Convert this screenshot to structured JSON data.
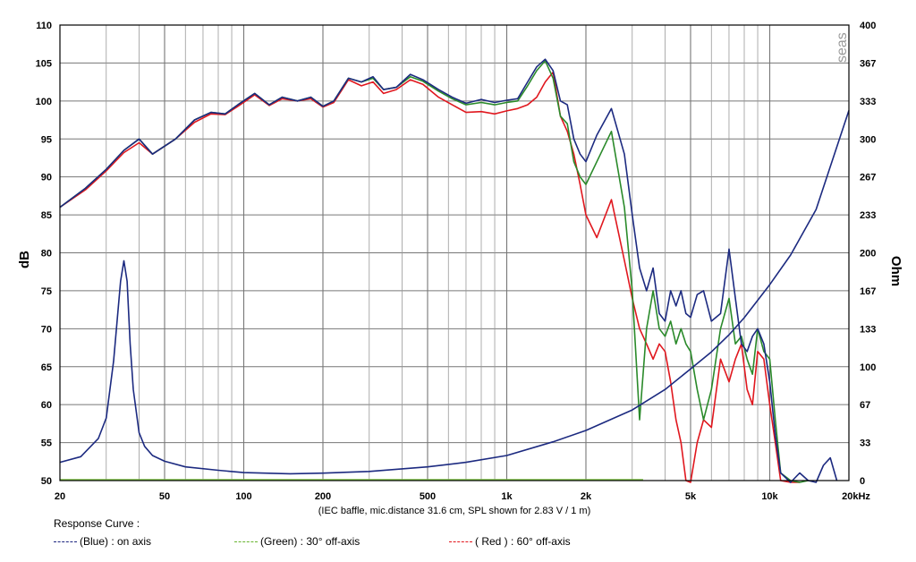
{
  "chart_data": {
    "type": "line",
    "xlabel": "",
    "ylabel": "dB",
    "y2label": "Ohm",
    "note": "(IEC baffle, mic.distance 31.6 cm, SPL shown for 2.83 V / 1 m)",
    "x_scale": "log",
    "xlim": [
      20,
      20000
    ],
    "ylim": [
      50,
      110
    ],
    "y2lim": [
      0,
      400
    ],
    "grid": true,
    "x_tick_labels": [
      "20",
      "50",
      "100",
      "200",
      "500",
      "1k",
      "2k",
      "5k",
      "10k",
      "20kHz"
    ],
    "x_tick_values": [
      20,
      50,
      100,
      200,
      500,
      1000,
      2000,
      5000,
      10000,
      20000
    ],
    "y_ticks": [
      50,
      55,
      60,
      65,
      70,
      75,
      80,
      85,
      90,
      95,
      100,
      105,
      110
    ],
    "y2_tick_labels": [
      "0",
      "33",
      "67",
      "100",
      "133",
      "167",
      "200",
      "233",
      "267",
      "300",
      "333",
      "367",
      "400"
    ],
    "watermark": "seas",
    "legend": {
      "heading": "Response Curve :",
      "items": [
        {
          "label": "(Blue)  : on axis",
          "color": "#1a237e"
        },
        {
          "label": "(Green) : 30° off-axis",
          "color": "#66b32e"
        },
        {
          "label": "( Red ) : 60° off-axis",
          "color": "#e3141b"
        }
      ]
    },
    "series": [
      {
        "name": "(Blue)  : on axis",
        "color": "#1c2a80",
        "x": [
          20,
          25,
          30,
          35,
          40,
          45,
          55,
          65,
          75,
          85,
          95,
          110,
          125,
          140,
          160,
          180,
          200,
          220,
          250,
          280,
          310,
          340,
          380,
          430,
          480,
          550,
          620,
          700,
          800,
          900,
          1000,
          1100,
          1200,
          1300,
          1400,
          1500,
          1600,
          1700,
          1800,
          1900,
          2000,
          2200,
          2500,
          2800,
          3000,
          3200,
          3400,
          3600,
          3800,
          4000,
          4200,
          4400,
          4600,
          4800,
          5000,
          5300,
          5600,
          6000,
          6500,
          7000,
          7400,
          7800,
          8200,
          8600,
          9000,
          9500,
          10000,
          10500,
          11000,
          12000,
          13000,
          14000,
          15000,
          16000,
          17000,
          18000
        ],
        "y": [
          86,
          88.5,
          91,
          93.5,
          95,
          93,
          95,
          97.5,
          98.5,
          98.3,
          99.5,
          101,
          99.5,
          100.5,
          100,
          100.5,
          99.3,
          100,
          103,
          102.5,
          103.2,
          101.5,
          101.8,
          103.5,
          102.8,
          101.5,
          100.5,
          99.7,
          100.2,
          99.8,
          100.1,
          100.3,
          102.5,
          104.5,
          105.5,
          104,
          100,
          99.5,
          95,
          93,
          92,
          95.5,
          99,
          93,
          85,
          78,
          75,
          78,
          72,
          71,
          75,
          73,
          75,
          72,
          71.5,
          74.5,
          75,
          71,
          72,
          80.5,
          74,
          68,
          67,
          69,
          70,
          68,
          63,
          56,
          51,
          49,
          51,
          50,
          49,
          52,
          53,
          50
        ]
      },
      {
        "name": "(Green) : 30° off-axis",
        "color": "#2a8a2a",
        "x": [
          20,
          25,
          30,
          35,
          40,
          45,
          55,
          65,
          75,
          85,
          95,
          110,
          125,
          140,
          160,
          180,
          200,
          220,
          250,
          280,
          310,
          340,
          380,
          430,
          480,
          550,
          620,
          700,
          800,
          900,
          1000,
          1100,
          1200,
          1300,
          1400,
          1500,
          1600,
          1700,
          1800,
          1900,
          2000,
          2200,
          2500,
          2800,
          3000,
          3200,
          3400,
          3600,
          3800,
          4000,
          4200,
          4400,
          4600,
          4800,
          5000,
          5300,
          5600,
          6000,
          6500,
          7000,
          7400,
          7800,
          8200,
          8600,
          9000,
          9500,
          10000,
          10500,
          11000,
          12000,
          13000,
          14000
        ],
        "y": [
          86,
          88.5,
          91,
          93.5,
          95,
          93,
          95,
          97.5,
          98.5,
          98.3,
          99.5,
          101,
          99.5,
          100.5,
          100,
          100.5,
          99.3,
          100,
          103,
          102.5,
          103,
          101.5,
          101.8,
          103.2,
          102.6,
          101.3,
          100.3,
          99.5,
          99.8,
          99.5,
          99.8,
          100,
          102,
          104,
          105.3,
          103,
          98,
          97,
          92,
          90,
          89,
          92,
          96,
          86,
          75,
          58,
          70,
          75,
          70,
          69,
          71,
          68,
          70,
          68,
          67,
          62,
          58,
          62,
          70,
          74,
          68,
          69,
          66,
          64,
          70,
          67,
          66,
          58,
          51,
          50,
          49,
          50
        ]
      },
      {
        "name": "( Red ) : 60° off-axis",
        "color": "#e0171e",
        "x": [
          20,
          25,
          30,
          35,
          40,
          45,
          55,
          65,
          75,
          85,
          95,
          110,
          125,
          140,
          160,
          180,
          200,
          220,
          250,
          280,
          310,
          340,
          380,
          430,
          480,
          550,
          620,
          700,
          800,
          900,
          1000,
          1100,
          1200,
          1300,
          1400,
          1500,
          1600,
          1700,
          1800,
          1900,
          2000,
          2200,
          2500,
          2800,
          3000,
          3200,
          3400,
          3600,
          3800,
          4000,
          4200,
          4400,
          4600,
          4800,
          5000,
          5300,
          5600,
          6000,
          6500,
          7000,
          7400,
          7800,
          8200,
          8600,
          9000,
          9500,
          10000,
          10500,
          11000,
          12000,
          13000
        ],
        "y": [
          86,
          88.3,
          90.8,
          93.2,
          94.5,
          93,
          95,
          97.2,
          98.3,
          98.2,
          99.3,
          100.8,
          99.4,
          100.3,
          100,
          100.3,
          99.2,
          99.8,
          102.8,
          102,
          102.5,
          101,
          101.5,
          102.8,
          102.2,
          100.5,
          99.5,
          98.5,
          98.6,
          98.3,
          98.7,
          99,
          99.5,
          100.5,
          102.5,
          103.8,
          98,
          96,
          93,
          89,
          85,
          82,
          87,
          79,
          74,
          70,
          68,
          66,
          68,
          67,
          63,
          58,
          55,
          50,
          48,
          55,
          58,
          57,
          66,
          63,
          66,
          68,
          62,
          60,
          67,
          66,
          60,
          55,
          50,
          49,
          48
        ]
      },
      {
        "name": "Impedance",
        "color": "#1c2a80",
        "axis": "y2",
        "x": [
          20,
          24,
          28,
          30,
          32,
          34,
          35,
          36,
          37,
          38,
          40,
          42,
          45,
          50,
          60,
          80,
          100,
          150,
          200,
          300,
          500,
          700,
          1000,
          1500,
          2000,
          3000,
          4000,
          5000,
          6000,
          7000,
          8000,
          10000,
          12000,
          15000,
          20000
        ],
        "y2": [
          16,
          21,
          37,
          55,
          105,
          175,
          193,
          175,
          120,
          80,
          42,
          30,
          22,
          17,
          12,
          9,
          7,
          6,
          6.5,
          8,
          12,
          16,
          22,
          34,
          44,
          62,
          80,
          98,
          113,
          128,
          143,
          172,
          198,
          238,
          325
        ]
      }
    ]
  }
}
